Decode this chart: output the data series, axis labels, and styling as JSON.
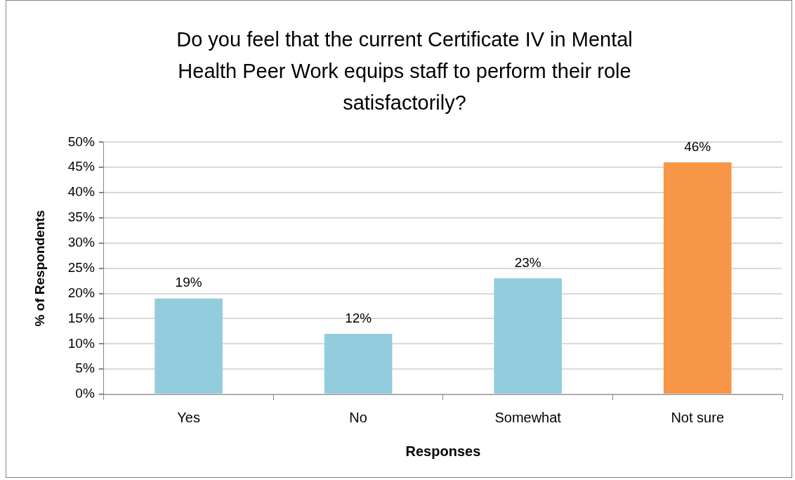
{
  "chart_data": {
    "type": "bar",
    "title": "Do you feel that the current Certificate IV in Mental Health Peer Work equips staff to perform their role satisfactorily?",
    "xlabel": "Responses",
    "ylabel": "% of Respondents",
    "categories": [
      "Yes",
      "No",
      "Somewhat",
      "Not sure"
    ],
    "values": [
      19,
      12,
      23,
      46
    ],
    "colors": [
      "#93cddd",
      "#93cddd",
      "#93cddd",
      "#f79646"
    ],
    "value_labels": [
      "19%",
      "12%",
      "23%",
      "46%"
    ],
    "ylim": [
      0,
      50
    ],
    "yticks": [
      {
        "value": 0,
        "label": "0%"
      },
      {
        "value": 5,
        "label": "5%"
      },
      {
        "value": 10,
        "label": "10%"
      },
      {
        "value": 15,
        "label": "15%"
      },
      {
        "value": 20,
        "label": "20%"
      },
      {
        "value": 25,
        "label": "25%"
      },
      {
        "value": 30,
        "label": "30%"
      },
      {
        "value": 35,
        "label": "35%"
      },
      {
        "value": 40,
        "label": "40%"
      },
      {
        "value": 45,
        "label": "45%"
      },
      {
        "value": 50,
        "label": "50%"
      }
    ],
    "grid": "y"
  }
}
